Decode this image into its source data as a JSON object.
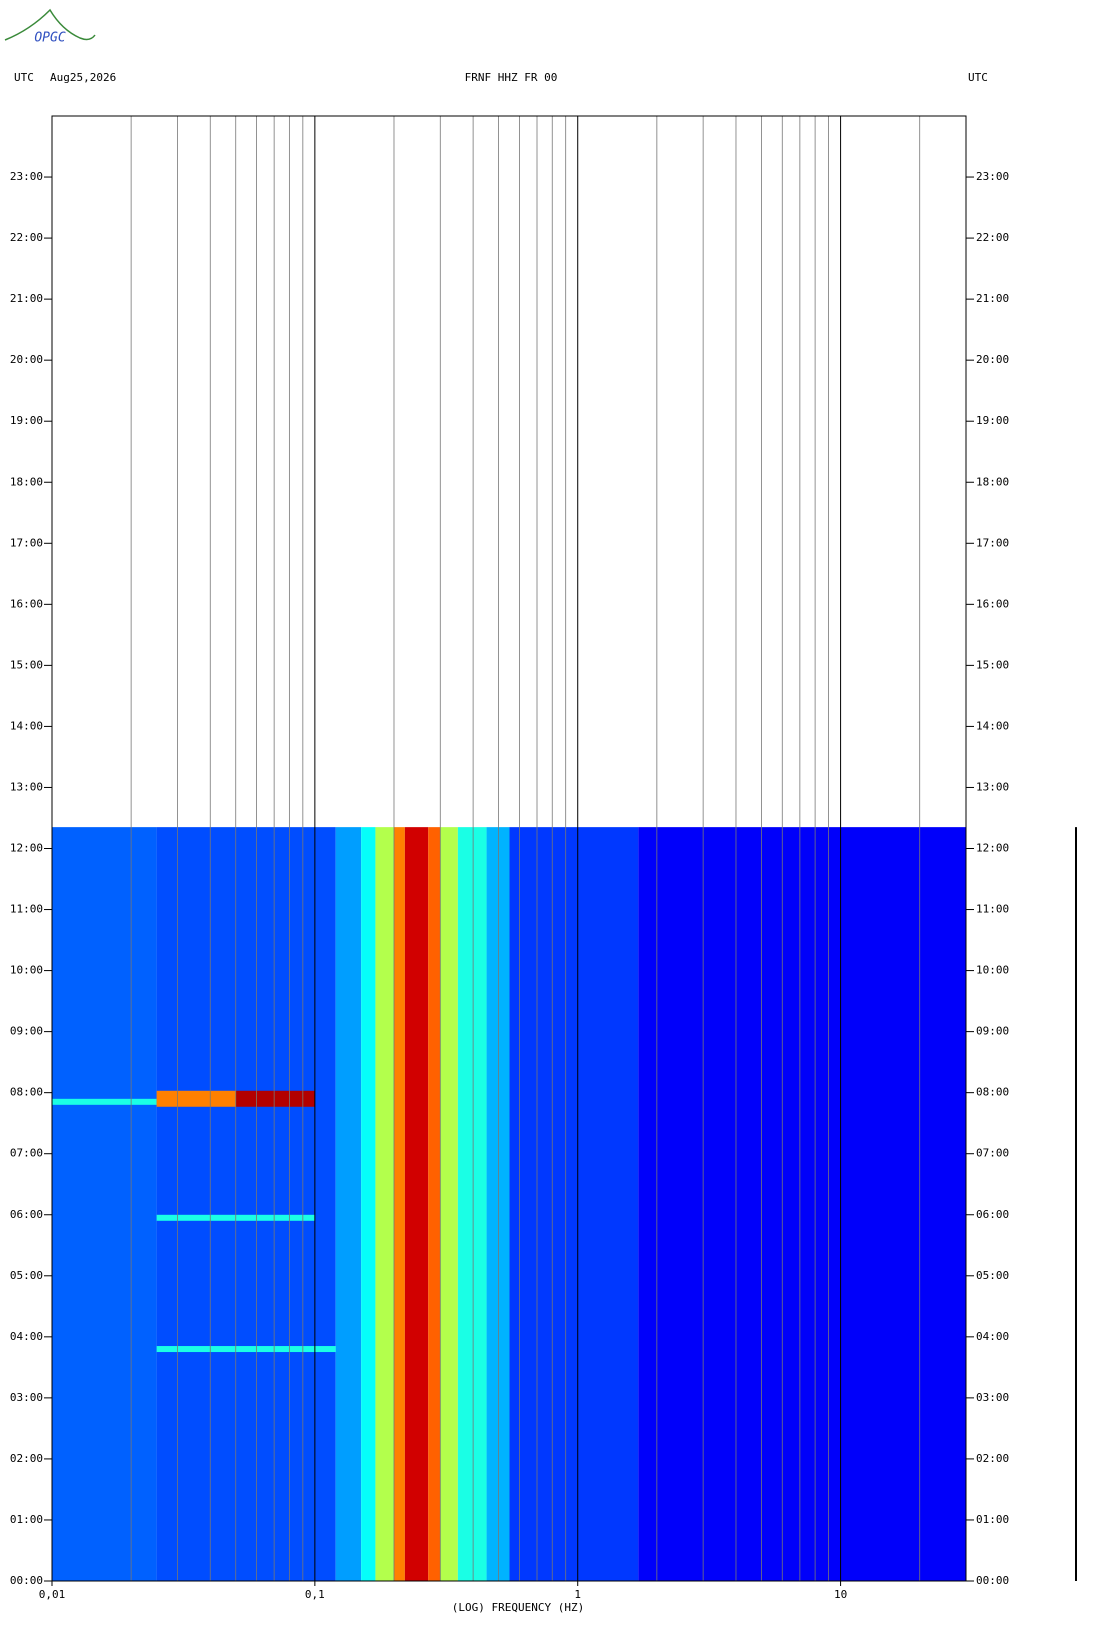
{
  "logo": "OPGC",
  "chart_data": {
    "type": "spectrogram",
    "title": "FRNF HHZ FR 00",
    "date": "Aug25,2026",
    "time_zone": "UTC",
    "xlabel": "(LOG) FREQUENCY (HZ)",
    "xscale": "log",
    "xlim": [
      0.01,
      30
    ],
    "xticks": [
      {
        "value": 0.01,
        "label": "0,01"
      },
      {
        "value": 0.1,
        "label": "0,1"
      },
      1,
      10
    ],
    "xminor": [
      0.02,
      0.03,
      0.04,
      0.05,
      0.06,
      0.07,
      0.08,
      0.09,
      0.2,
      0.3,
      0.4,
      0.5,
      0.6,
      0.7,
      0.8,
      0.9,
      2,
      3,
      4,
      5,
      6,
      7,
      8,
      9,
      20
    ],
    "ylim": [
      0,
      24
    ],
    "yticks": [
      {
        "value": 0,
        "label": "00:00"
      },
      {
        "value": 1,
        "label": "01:00"
      },
      {
        "value": 2,
        "label": "02:00"
      },
      {
        "value": 3,
        "label": "03:00"
      },
      {
        "value": 4,
        "label": "04:00"
      },
      {
        "value": 5,
        "label": "05:00"
      },
      {
        "value": 6,
        "label": "06:00"
      },
      {
        "value": 7,
        "label": "07:00"
      },
      {
        "value": 8,
        "label": "08:00"
      },
      {
        "value": 9,
        "label": "09:00"
      },
      {
        "value": 10,
        "label": "10:00"
      },
      {
        "value": 11,
        "label": "11:00"
      },
      {
        "value": 12,
        "label": "12:00"
      },
      {
        "value": 13,
        "label": "13:00"
      },
      {
        "value": 14,
        "label": "14:00"
      },
      {
        "value": 15,
        "label": "15:00"
      },
      {
        "value": 16,
        "label": "16:00"
      },
      {
        "value": 17,
        "label": "17:00"
      },
      {
        "value": 18,
        "label": "18:00"
      },
      {
        "value": 19,
        "label": "19:00"
      },
      {
        "value": 20,
        "label": "20:00"
      },
      {
        "value": 21,
        "label": "21:00"
      },
      {
        "value": 22,
        "label": "22:00"
      },
      {
        "value": 23,
        "label": "23:00"
      }
    ],
    "data_ylim": [
      0,
      12.35
    ],
    "bin_edges": [
      0.01,
      0.025,
      0.05,
      0.09,
      0.12,
      0.15,
      0.17,
      0.2,
      0.22,
      0.27,
      0.3,
      0.35,
      0.45,
      0.55,
      1.7,
      30
    ],
    "levels": [
      0.22,
      0.2,
      0.2,
      0.2,
      0.28,
      0.38,
      0.55,
      0.75,
      0.92,
      0.78,
      0.55,
      0.4,
      0.3,
      0.18,
      0.12
    ],
    "events": [
      {
        "time": 7.85,
        "freq": [
          0.01,
          0.025
        ],
        "level": 0.4
      },
      {
        "time": 7.9,
        "freq": [
          0.025,
          0.05
        ],
        "level": 0.75
      },
      {
        "time": 7.9,
        "freq": [
          0.05,
          0.1
        ],
        "level": 0.95
      },
      {
        "time": 5.95,
        "freq": [
          0.025,
          0.1
        ],
        "level": 0.4
      },
      {
        "time": 3.8,
        "freq": [
          0.025,
          0.12
        ],
        "level": 0.4
      }
    ]
  }
}
